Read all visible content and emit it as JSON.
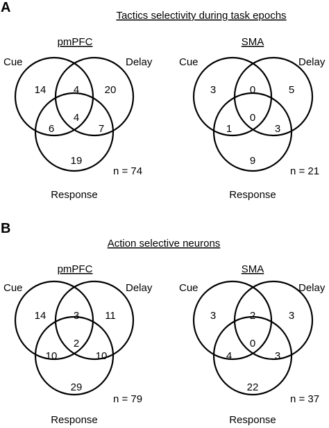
{
  "panels": [
    {
      "letter": "A",
      "title": "Tactics selectivity during task epochs",
      "diagrams": [
        {
          "region": "pmPFC",
          "labels": {
            "cue": "Cue",
            "delay": "Delay",
            "response": "Response"
          },
          "counts": {
            "cue_only": "14",
            "cue_delay": "4",
            "delay_only": "20",
            "center": "4",
            "cue_response": "6",
            "delay_response": "7",
            "response_only": "19"
          },
          "n": "n = 74"
        },
        {
          "region": "SMA",
          "labels": {
            "cue": "Cue",
            "delay": "Delay",
            "response": "Response"
          },
          "counts": {
            "cue_only": "3",
            "cue_delay": "0",
            "delay_only": "5",
            "center": "0",
            "cue_response": "1",
            "delay_response": "3",
            "response_only": "9"
          },
          "n": "n = 21"
        }
      ]
    },
    {
      "letter": "B",
      "title": "Action selective neurons",
      "diagrams": [
        {
          "region": "pmPFC",
          "labels": {
            "cue": "Cue",
            "delay": "Delay",
            "response": "Response"
          },
          "counts": {
            "cue_only": "14",
            "cue_delay": "3",
            "delay_only": "11",
            "center": "2",
            "cue_response": "10",
            "delay_response": "10",
            "response_only": "29"
          },
          "n": "n = 79"
        },
        {
          "region": "SMA",
          "labels": {
            "cue": "Cue",
            "delay": "Delay",
            "response": "Response"
          },
          "counts": {
            "cue_only": "3",
            "cue_delay": "2",
            "delay_only": "3",
            "center": "0",
            "cue_response": "4",
            "delay_response": "3",
            "response_only": "22"
          },
          "n": "n = 37"
        }
      ]
    }
  ]
}
